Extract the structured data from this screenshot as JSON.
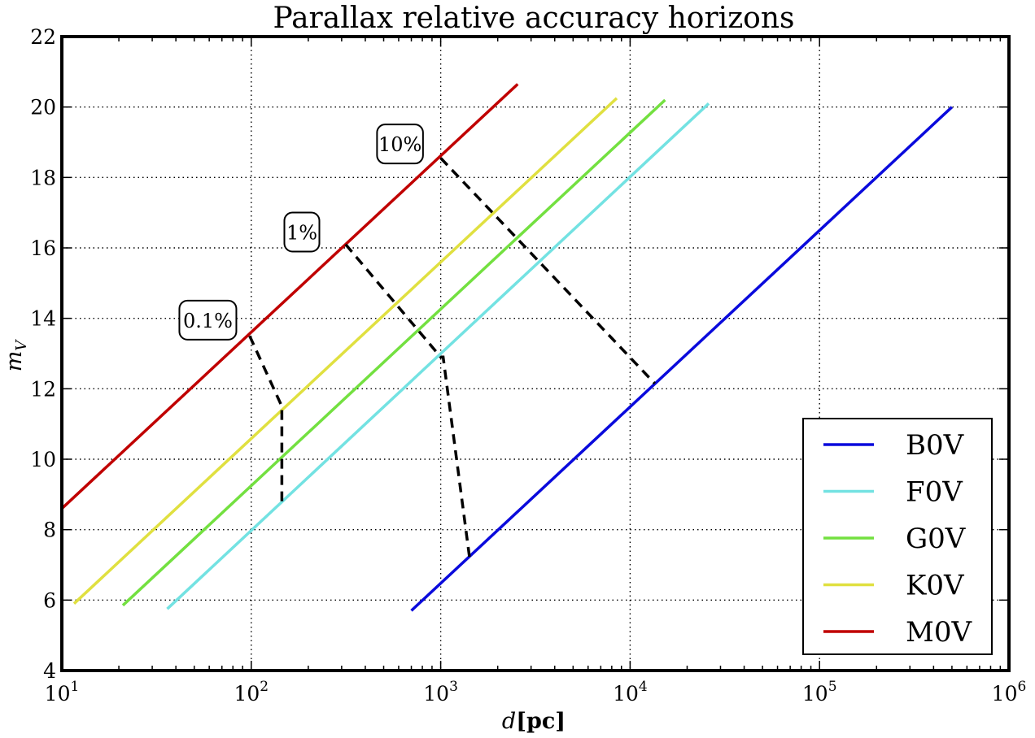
{
  "chart_data": {
    "type": "line",
    "title": "Parallax relative accuracy horizons",
    "xlabel": "d[pc]",
    "xlabel_italic": "d",
    "xlabel_unit": "[pc]",
    "ylabel": "m_V",
    "ylabel_main": "m",
    "ylabel_sub": "V",
    "xscale": "log",
    "xlim": [
      10,
      1000000
    ],
    "ylim": [
      4,
      22
    ],
    "grid": true,
    "x_ticks": [
      {
        "base": "10",
        "exp": "1",
        "value": 10
      },
      {
        "base": "10",
        "exp": "2",
        "value": 100
      },
      {
        "base": "10",
        "exp": "3",
        "value": 1000
      },
      {
        "base": "10",
        "exp": "4",
        "value": 10000
      },
      {
        "base": "10",
        "exp": "5",
        "value": 100000
      },
      {
        "base": "10",
        "exp": "6",
        "value": 1000000
      }
    ],
    "y_ticks": [
      "4",
      "6",
      "8",
      "10",
      "12",
      "14",
      "16",
      "18",
      "20",
      "22"
    ],
    "legend_position": "bottom-right",
    "series": [
      {
        "name": "B0V",
        "color": "#0a0adc",
        "x": [
          700,
          500000
        ],
        "y": [
          5.7,
          20.0
        ]
      },
      {
        "name": "F0V",
        "color": "#73e2e2",
        "x": [
          36,
          26000
        ],
        "y": [
          5.75,
          20.1
        ]
      },
      {
        "name": "G0V",
        "color": "#73e040",
        "x": [
          21,
          15300
        ],
        "y": [
          5.85,
          20.2
        ]
      },
      {
        "name": "K0V",
        "color": "#e0e040",
        "x": [
          11.6,
          8500
        ],
        "y": [
          5.9,
          20.25
        ]
      },
      {
        "name": "M0V",
        "color": "#c00000",
        "x": [
          10,
          2550
        ],
        "y": [
          8.6,
          20.65
        ]
      }
    ],
    "horizons": [
      {
        "label": "0.1%",
        "x": [
          98,
          145,
          145,
          145
        ],
        "y": [
          13.5,
          11.5,
          11.3,
          8.7
        ]
      },
      {
        "label": "1%",
        "x": [
          315,
          1000,
          1030,
          1420
        ],
        "y": [
          16.1,
          12.9,
          12.9,
          7.2
        ]
      },
      {
        "label": "10%",
        "x": [
          1000,
          13500
        ],
        "y": [
          18.55,
          12.15
        ]
      }
    ],
    "annotations": [
      {
        "text": "0.1%",
        "x": 59,
        "y": 13.95
      },
      {
        "text": "1%",
        "x": 185,
        "y": 16.45
      },
      {
        "text": "10%",
        "x": 610,
        "y": 18.95
      }
    ]
  }
}
